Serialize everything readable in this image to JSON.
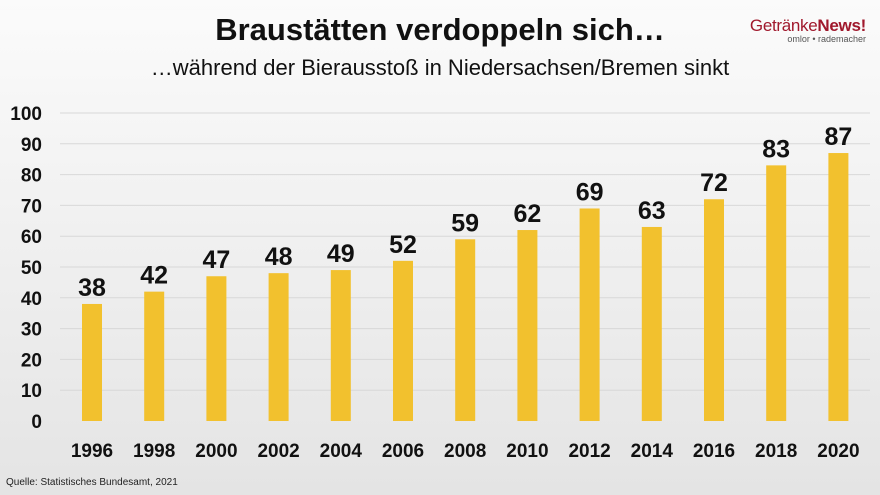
{
  "header": {
    "title": "Braustätten verdoppeln sich…",
    "subtitle": "…während der Bierausstoß in Niedersachsen/Bremen sinkt"
  },
  "logo": {
    "name_part1": "Getränke",
    "name_part2": "News!",
    "tagline": "omlor • rademacher"
  },
  "source": "Quelle: Statistisches Bundesamt, 2021",
  "chart_data": {
    "type": "bar",
    "title": "Braustätten verdoppeln sich…",
    "subtitle": "…während der Bierausstoß in Niedersachsen/Bremen sinkt",
    "categories": [
      "1996",
      "1998",
      "2000",
      "2002",
      "2004",
      "2006",
      "2008",
      "2010",
      "2012",
      "2014",
      "2016",
      "2018",
      "2020"
    ],
    "values": [
      38,
      42,
      47,
      48,
      49,
      52,
      59,
      62,
      69,
      63,
      72,
      83,
      87
    ],
    "ylim": [
      0,
      100
    ],
    "yticks": [
      "0",
      "10",
      "20",
      "30",
      "40",
      "50",
      "60",
      "70",
      "80",
      "90",
      "100"
    ],
    "grid": true,
    "bar_color": "#f2c12e"
  }
}
